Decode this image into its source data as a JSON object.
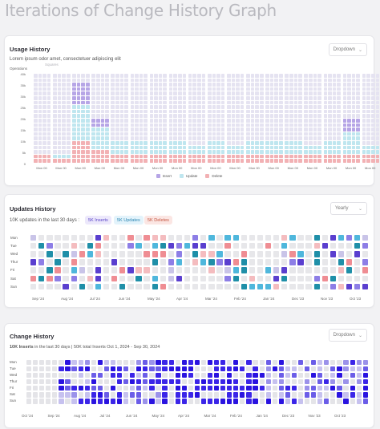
{
  "page": {
    "title": "Iterations of Change History Graph"
  },
  "usage": {
    "title": "Usage History",
    "subtitle": "Lorem ipsum odor amet, consectetuer adipiscing elit",
    "squares_label": "Squares",
    "operations_label": "Operations",
    "dropdown": "Dropdown",
    "y_ticks": [
      "40k",
      "35k",
      "30k",
      "25k",
      "20k",
      "15k",
      "10k",
      "5k",
      "0"
    ],
    "x_ticks": [
      "Mon 00",
      "Mon 00",
      "Mon 00",
      "Mon 00",
      "Mon 00",
      "Mon 00",
      "Mon 00",
      "Mon 00",
      "Mon 00",
      "Mon 00",
      "Mon 00",
      "Mon 00",
      "Mon 00",
      "Mon 00",
      "Mon 00",
      "Mon 00",
      "Mon 00",
      "Mon 00"
    ],
    "legend": [
      {
        "label": "Insert",
        "color": "#b6a5e6"
      },
      {
        "label": "Update",
        "color": "#bfe6ef"
      },
      {
        "label": "Delete",
        "color": "#f2b1b4"
      }
    ]
  },
  "chart_data": {
    "type": "bar",
    "stacked": true,
    "ylim": [
      0,
      40000
    ],
    "y_ticks": [
      "40k",
      "35k",
      "30k",
      "25k",
      "20k",
      "15k",
      "10k",
      "5k",
      "0"
    ],
    "ylabel": "Operations",
    "categories": [
      "Mon 00",
      "Mon 00",
      "Mon 00",
      "Mon 00",
      "Mon 00",
      "Mon 00",
      "Mon 00",
      "Mon 00",
      "Mon 00",
      "Mon 00",
      "Mon 00",
      "Mon 00",
      "Mon 00",
      "Mon 00",
      "Mon 00",
      "Mon 00",
      "Mon 00",
      "Mon 00"
    ],
    "series": [
      {
        "name": "Delete",
        "color": "#f2b1b4",
        "values": [
          4000,
          2000,
          10000,
          6000,
          4000,
          4000,
          4000,
          4000,
          4000,
          4000,
          4000,
          4000,
          4000,
          4000,
          4000,
          4000,
          4000,
          4000
        ]
      },
      {
        "name": "Update",
        "color": "#bfe6ef",
        "values": [
          0,
          2000,
          16000,
          10000,
          6000,
          6000,
          6000,
          6000,
          4000,
          6000,
          4000,
          6000,
          6000,
          6000,
          4000,
          6000,
          10000,
          4000
        ]
      },
      {
        "name": "Insert",
        "color": "#b6a5e6",
        "values": [
          0,
          0,
          10000,
          4000,
          0,
          0,
          0,
          0,
          0,
          0,
          0,
          0,
          0,
          0,
          0,
          0,
          6000,
          0
        ]
      }
    ],
    "background_color": "#e5e3f1",
    "cells_per_column": 20
  },
  "updates": {
    "title": "Updates History",
    "summary": "10K updates in the last 30 days :",
    "chips": [
      {
        "label": "5K Inserts",
        "bg": "#ece8fb",
        "fg": "#5a44c8"
      },
      {
        "label": "5K Updates",
        "bg": "#e3f3fb",
        "fg": "#2b86b3"
      },
      {
        "label": "5K Deletes",
        "bg": "#fbe6e3",
        "fg": "#c4543f"
      }
    ],
    "dropdown": "Yearly",
    "days": [
      "Mon",
      "Tue",
      "Wed",
      "Thur",
      "Fri",
      "Sat",
      "Sun"
    ],
    "months": [
      "Sep '24",
      "Aug '24",
      "Jul '24",
      "Jun '24",
      "May '24",
      "Apr '24",
      "Mar '24",
      "Feb '24",
      "Jan '24",
      "Dec '23",
      "Nov '23",
      "Oct '23"
    ]
  },
  "changes": {
    "title": "Change History",
    "summary_bold": "10K Inserts",
    "summary_rest": " in the last 30 days | 50K total Inserts Oct 1, 2024 - Sep 30, 2024",
    "dropdown": "Dropdown",
    "days": [
      "Mon",
      "Tue",
      "Wed",
      "Thur",
      "Fri",
      "Sat",
      "Sun"
    ],
    "months": [
      "Oct '24",
      "Sep '24",
      "Aug '24",
      "Jul '24",
      "Jun '24",
      "May '24",
      "Apr '24",
      "Mar '24",
      "Feb '24",
      "Jan '24",
      "Dec '23",
      "Nov '23",
      "Oct '23"
    ]
  }
}
